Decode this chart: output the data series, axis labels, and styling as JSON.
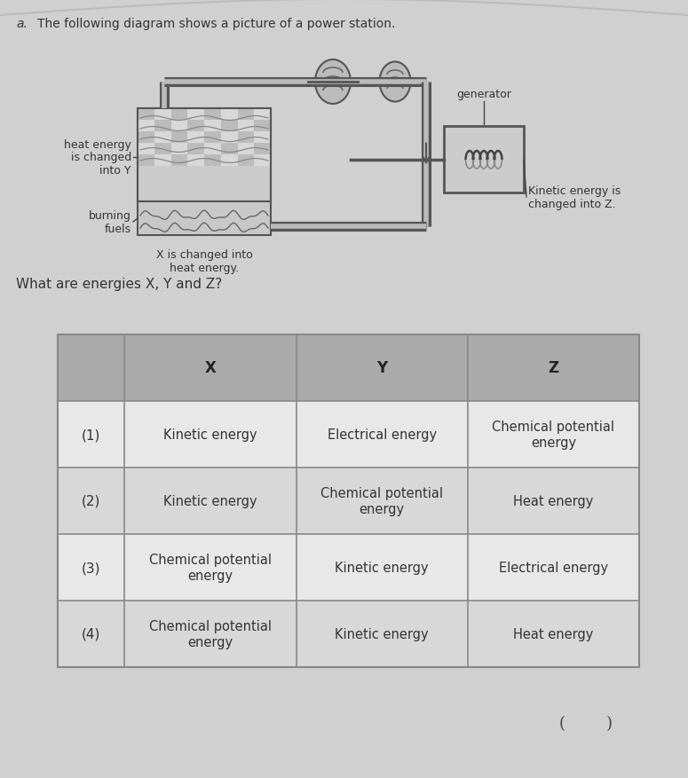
{
  "bg_color": "#d0d0d0",
  "question_number": "a.",
  "title": "The following diagram shows a picture of a power station.",
  "label_heat": "heat energy\nis changed\ninto Y",
  "label_burning": "burning\nfuels",
  "label_x": "X is changed into\nheat energy.",
  "label_generator": "generator",
  "label_kinetic": "Kinetic energy is\nchanged into Z.",
  "question_text": "What are energies X, Y and Z?",
  "col_headers": [
    "X",
    "Y",
    "Z"
  ],
  "rows": [
    [
      "(1)",
      "Kinetic energy",
      "Electrical energy",
      "Chemical potential\nenergy"
    ],
    [
      "(2)",
      "Kinetic energy",
      "Chemical potential\nenergy",
      "Heat energy"
    ],
    [
      "(3)",
      "Chemical potential\nenergy",
      "Kinetic energy",
      "Electrical energy"
    ],
    [
      "(4)",
      "Chemical potential\nenergy",
      "Kinetic energy",
      "Heat energy"
    ]
  ],
  "footer": "(        )",
  "header_color": "#aaaaaa",
  "row_colors": [
    "#e8e8e8",
    "#d8d8d8",
    "#e8e8e8",
    "#d8d8d8"
  ],
  "table_border": "#888888"
}
